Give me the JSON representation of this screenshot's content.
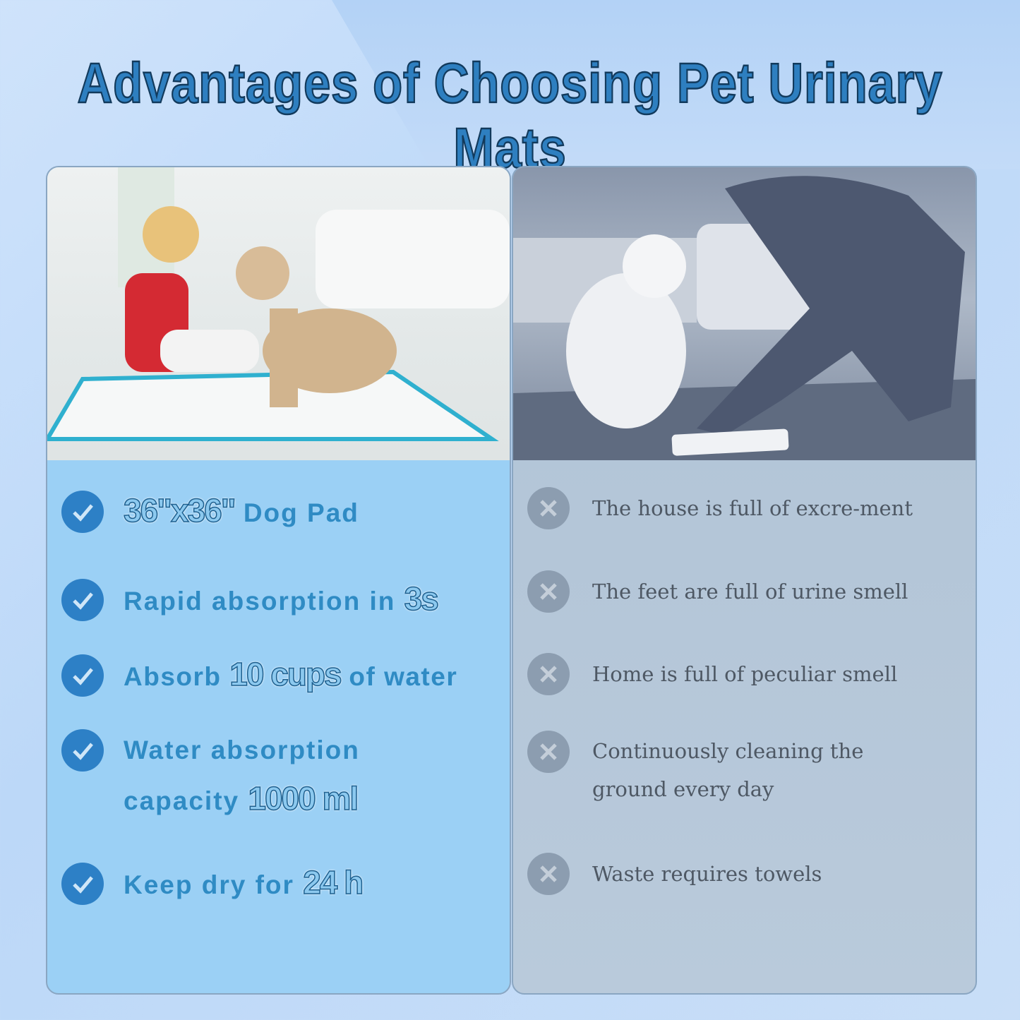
{
  "title": "Advantages of Choosing Pet Urinary Mats",
  "colors": {
    "accent": "#2d80c6",
    "left_panel": "#9bd0f5",
    "right_panel": "#b3c5d8",
    "cross": "#8c9db0"
  },
  "left_panel": {
    "photo": "child-with-dog-on-pad",
    "items": [
      {
        "icon": "check-circle-icon",
        "highlight": "36\"x36\"",
        "text_after": " Dog Pad"
      },
      {
        "icon": "check-circle-icon",
        "text_before": "Rapid absorption in ",
        "highlight": "3s"
      },
      {
        "icon": "check-circle-icon",
        "text_before": "Absorb ",
        "highlight": "10 cups",
        "text_after": " of water"
      },
      {
        "icon": "check-circle-icon",
        "text_before": "Water absorption",
        "text_line2": "capacity ",
        "highlight": "1000 ml"
      },
      {
        "icon": "check-circle-icon",
        "text_before": "Keep dry for ",
        "highlight": "24 h"
      }
    ]
  },
  "right_panel": {
    "photo": "woman-cleaning-floor-with-poodle",
    "items": [
      {
        "icon": "x-circle-icon",
        "text": "The house is full of excre-ment"
      },
      {
        "icon": "x-circle-icon",
        "text": "The feet are full of urine smell"
      },
      {
        "icon": "x-circle-icon",
        "text": "Home is full of peculiar smell"
      },
      {
        "icon": "x-circle-icon",
        "text": "Continuously cleaning the",
        "text_line2": "ground every day"
      },
      {
        "icon": "x-circle-icon",
        "text": "Waste requires towels"
      }
    ]
  }
}
